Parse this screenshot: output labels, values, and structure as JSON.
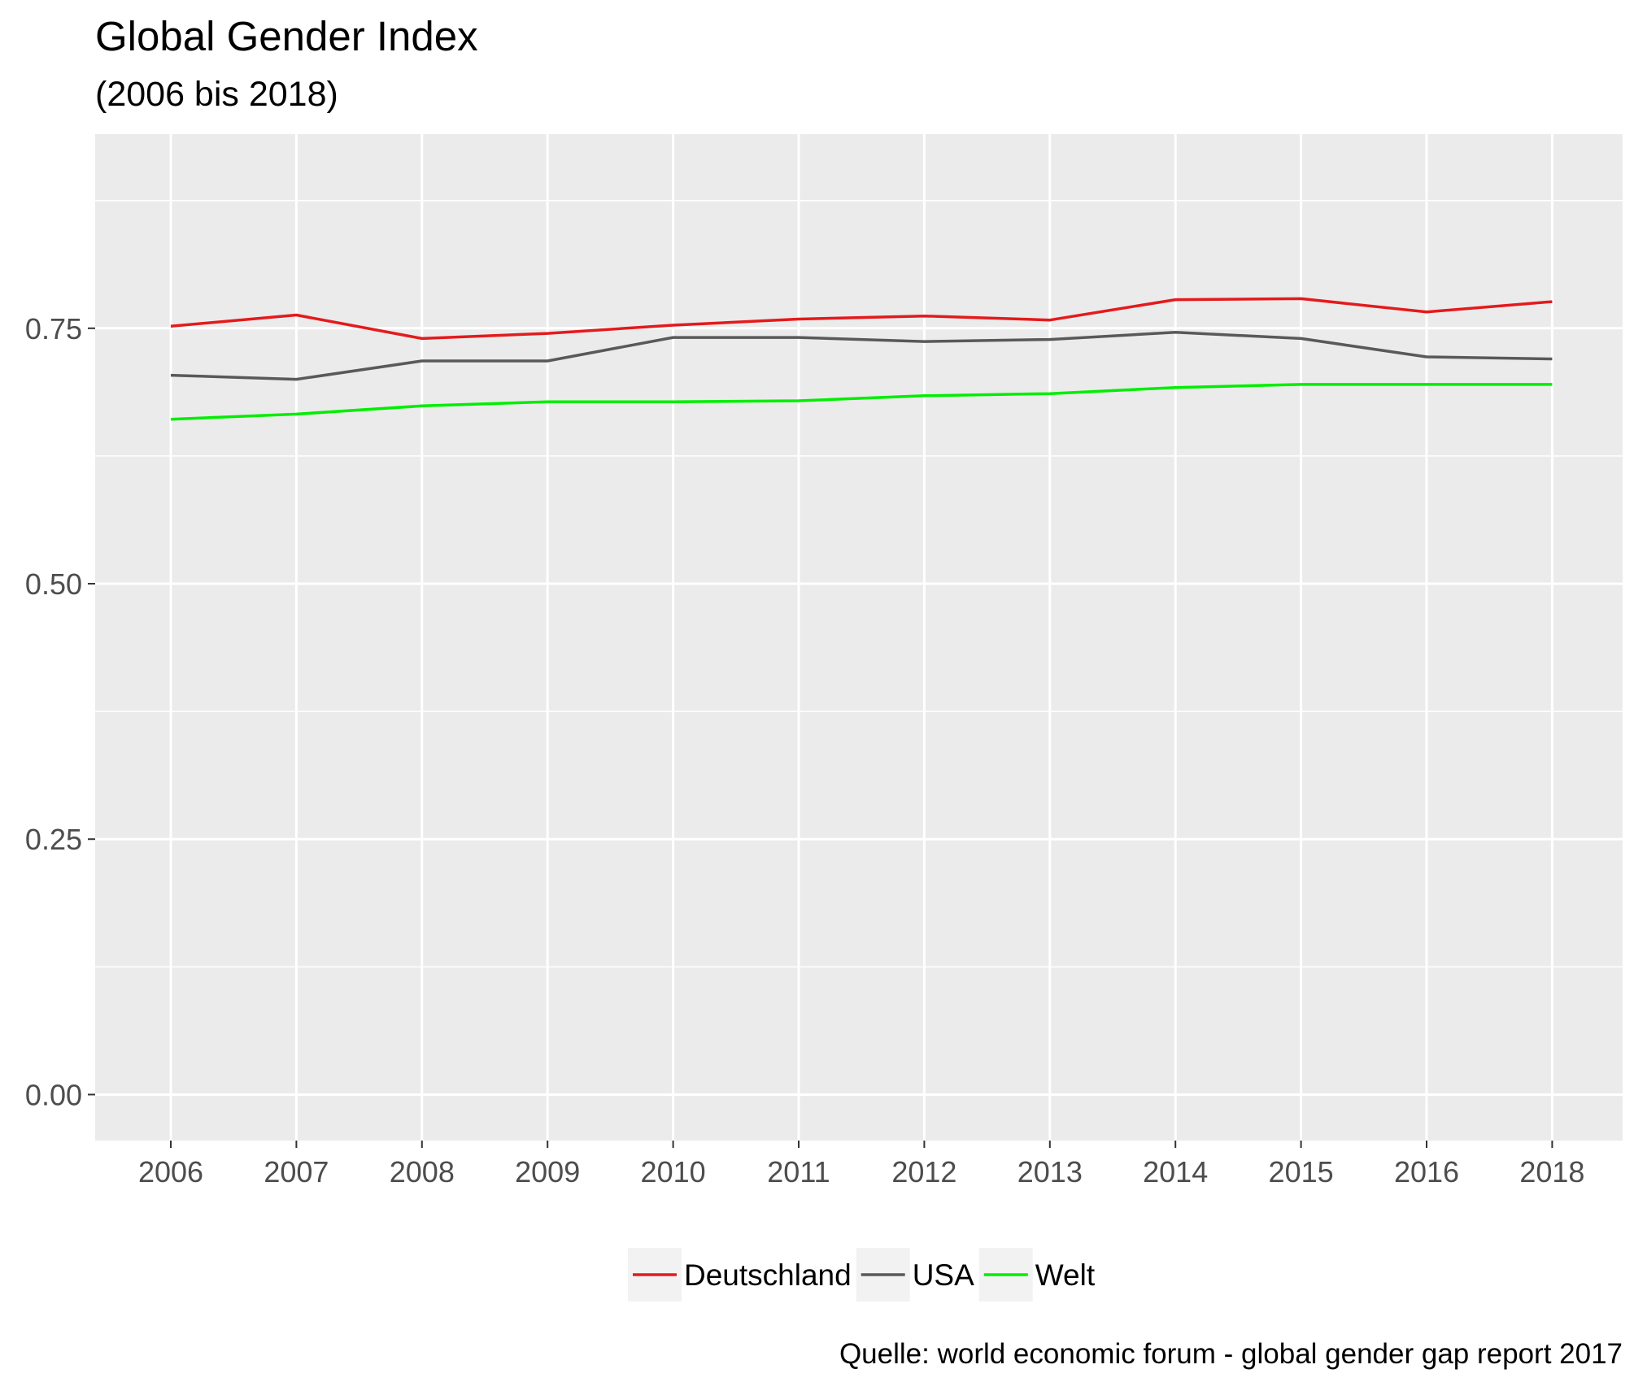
{
  "chart_data": {
    "type": "line",
    "title": "Global Gender Index",
    "subtitle": "(2006 bis 2018)",
    "caption": "Quelle: world economic forum - global gender gap report 2017",
    "xlabel": "",
    "ylabel": "",
    "categories": [
      "2006",
      "2007",
      "2008",
      "2009",
      "2010",
      "2011",
      "2012",
      "2013",
      "2014",
      "2015",
      "2016",
      "2018"
    ],
    "y_ticks": [
      0.0,
      0.25,
      0.5,
      0.75
    ],
    "y_tick_labels": [
      "0.00",
      "0.25",
      "0.50",
      "0.75"
    ],
    "ylim": [
      -0.045,
      0.94
    ],
    "grid": true,
    "legend_position": "bottom",
    "series": [
      {
        "name": "Deutschland",
        "color": "#e41a1c",
        "values": [
          0.752,
          0.763,
          0.74,
          0.745,
          0.753,
          0.759,
          0.762,
          0.758,
          0.778,
          0.779,
          0.766,
          0.776
        ]
      },
      {
        "name": "USA",
        "color": "#595959",
        "values": [
          0.704,
          0.7,
          0.718,
          0.718,
          0.741,
          0.741,
          0.737,
          0.739,
          0.746,
          0.74,
          0.722,
          0.72
        ]
      },
      {
        "name": "Welt",
        "color": "#00ee00",
        "values": [
          0.661,
          0.666,
          0.674,
          0.678,
          0.678,
          0.679,
          0.684,
          0.686,
          0.692,
          0.695,
          0.695,
          0.695
        ]
      }
    ]
  }
}
